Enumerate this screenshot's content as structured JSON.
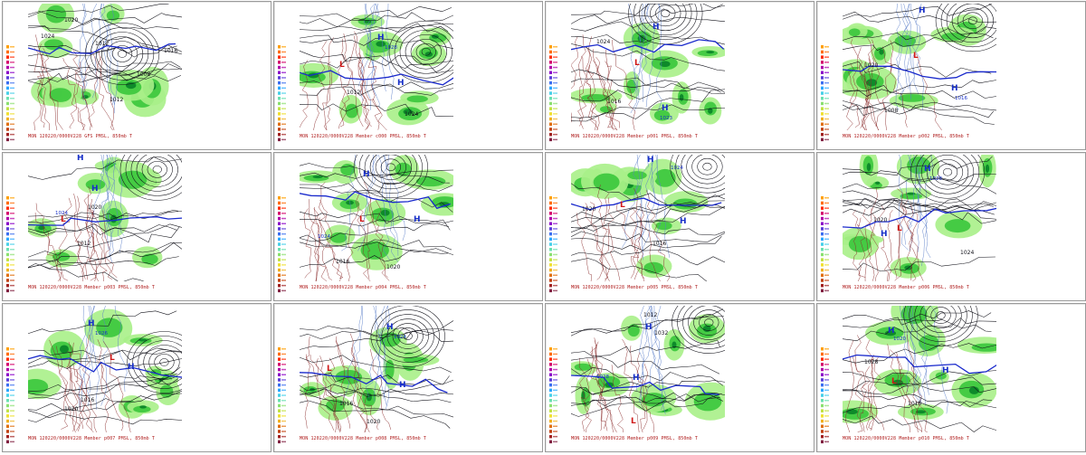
{
  "panels": [
    {
      "caption": "MON 120220/0000V228  GFS PMSL, 850mb T",
      "labels": [
        {
          "t": "1024",
          "c": "n"
        },
        {
          "t": "1020",
          "c": "n"
        },
        {
          "t": "1012",
          "c": "n"
        },
        {
          "t": "1016",
          "c": "n"
        },
        {
          "t": "1008",
          "c": "n"
        },
        {
          "t": "1012",
          "c": "n"
        }
      ]
    },
    {
      "caption": "MON 120220/0000V228  Member c000 PMSL, 850mb T",
      "labels": [
        {
          "t": "H",
          "c": "h"
        },
        {
          "t": "1028",
          "c": "hn"
        },
        {
          "t": "H",
          "c": "h"
        },
        {
          "t": "L",
          "c": "l"
        },
        {
          "t": "1024",
          "c": "n"
        },
        {
          "t": "1012",
          "c": "n"
        }
      ]
    },
    {
      "caption": "MON 120220/0000V228  Member p001 PMSL, 850mb T",
      "labels": [
        {
          "t": "H",
          "c": "h"
        },
        {
          "t": "1024",
          "c": "n"
        },
        {
          "t": "L",
          "c": "l"
        },
        {
          "t": "H",
          "c": "h"
        },
        {
          "t": "1023",
          "c": "hn"
        },
        {
          "t": "1016",
          "c": "n"
        }
      ]
    },
    {
      "caption": "MON 120220/0000V228  Member p002 PMSL, 850mb T",
      "labels": [
        {
          "t": "H",
          "c": "h"
        },
        {
          "t": "1020",
          "c": "n"
        },
        {
          "t": "L",
          "c": "l"
        },
        {
          "t": "H",
          "c": "h"
        },
        {
          "t": "1016",
          "c": "hn"
        },
        {
          "t": "1008",
          "c": "n"
        }
      ]
    },
    {
      "caption": "MON 120220/0000V228  Member p003 PMSL, 850mb T",
      "labels": [
        {
          "t": "H",
          "c": "h"
        },
        {
          "t": "1024",
          "c": "hn"
        },
        {
          "t": "L",
          "c": "l"
        },
        {
          "t": "H",
          "c": "h"
        },
        {
          "t": "1020",
          "c": "n"
        },
        {
          "t": "1012",
          "c": "n"
        }
      ]
    },
    {
      "caption": "MON 120220/0000V228  Member p004 PMSL, 850mb T",
      "labels": [
        {
          "t": "H",
          "c": "h"
        },
        {
          "t": "1024",
          "c": "hn"
        },
        {
          "t": "L",
          "c": "l"
        },
        {
          "t": "H",
          "c": "h"
        },
        {
          "t": "1020",
          "c": "n"
        },
        {
          "t": "1016",
          "c": "n"
        }
      ]
    },
    {
      "caption": "MON 120220/0000V228  Member p005 PMSL, 850mb T",
      "labels": [
        {
          "t": "H",
          "c": "h"
        },
        {
          "t": "1024",
          "c": "hn"
        },
        {
          "t": "L",
          "c": "l"
        },
        {
          "t": "H",
          "c": "h"
        },
        {
          "t": "1016",
          "c": "n"
        },
        {
          "t": "1020",
          "c": "n"
        }
      ]
    },
    {
      "caption": "MON 120220/0000V228  Member p006 PMSL, 850mb T",
      "labels": [
        {
          "t": "H",
          "c": "h"
        },
        {
          "t": "1028",
          "c": "hn"
        },
        {
          "t": "L",
          "c": "l"
        },
        {
          "t": "H",
          "c": "h"
        },
        {
          "t": "1020",
          "c": "n"
        },
        {
          "t": "1024",
          "c": "n"
        }
      ]
    },
    {
      "caption": "MON 120220/0000V228  Member p007 PMSL, 850mb T",
      "labels": [
        {
          "t": "H",
          "c": "h"
        },
        {
          "t": "1026",
          "c": "hn"
        },
        {
          "t": "L",
          "c": "l"
        },
        {
          "t": "H",
          "c": "h"
        },
        {
          "t": "1016",
          "c": "n"
        },
        {
          "t": "1020",
          "c": "n"
        }
      ]
    },
    {
      "caption": "MON 120220/0000V228  Member p008 PMSL, 850mb T",
      "labels": [
        {
          "t": "H",
          "c": "h"
        },
        {
          "t": "1024",
          "c": "hn"
        },
        {
          "t": "L",
          "c": "l"
        },
        {
          "t": "H",
          "c": "h"
        },
        {
          "t": "1020",
          "c": "n"
        },
        {
          "t": "1016",
          "c": "n"
        }
      ]
    },
    {
      "caption": "MON 120220/0000V228  Member p009 PMSL, 850mb T",
      "labels": [
        {
          "t": "H",
          "c": "h"
        },
        {
          "t": "1032",
          "c": "n"
        },
        {
          "t": "L",
          "c": "l"
        },
        {
          "t": "H",
          "c": "h"
        },
        {
          "t": "1028",
          "c": "hn"
        },
        {
          "t": "1012",
          "c": "n"
        }
      ]
    },
    {
      "caption": "MON 120220/0000V228  Member p010 PMSL, 850mb T",
      "labels": [
        {
          "t": "H",
          "c": "h"
        },
        {
          "t": "1020",
          "c": "hn"
        },
        {
          "t": "L",
          "c": "l"
        },
        {
          "t": "H",
          "c": "h"
        },
        {
          "t": "1016",
          "c": "n"
        },
        {
          "t": "1028",
          "c": "n"
        }
      ]
    }
  ],
  "legend_colors": [
    "#ff9f00",
    "#ff6a00",
    "#ff2a00",
    "#d4006a",
    "#b000a8",
    "#8a00c8",
    "#5a3cd8",
    "#3a6ef0",
    "#2aa6ff",
    "#46d0e8",
    "#6ae0b0",
    "#8ae070",
    "#c0e040",
    "#f0e030",
    "#f0b020",
    "#e07010",
    "#c04010",
    "#a02020",
    "#802040"
  ],
  "colors": {
    "caption": "#b02020",
    "h_label": "#1830c8",
    "l_label": "#d01818",
    "isobar": "#101018",
    "isobar_bold": "#1a2acc",
    "temp_warm": "#8a2b2b",
    "temp_cold": "#5a7ec8",
    "precip_light": "#a8ef88",
    "precip_mid": "#3fc83f",
    "precip_heavy": "#0e8a2a"
  }
}
